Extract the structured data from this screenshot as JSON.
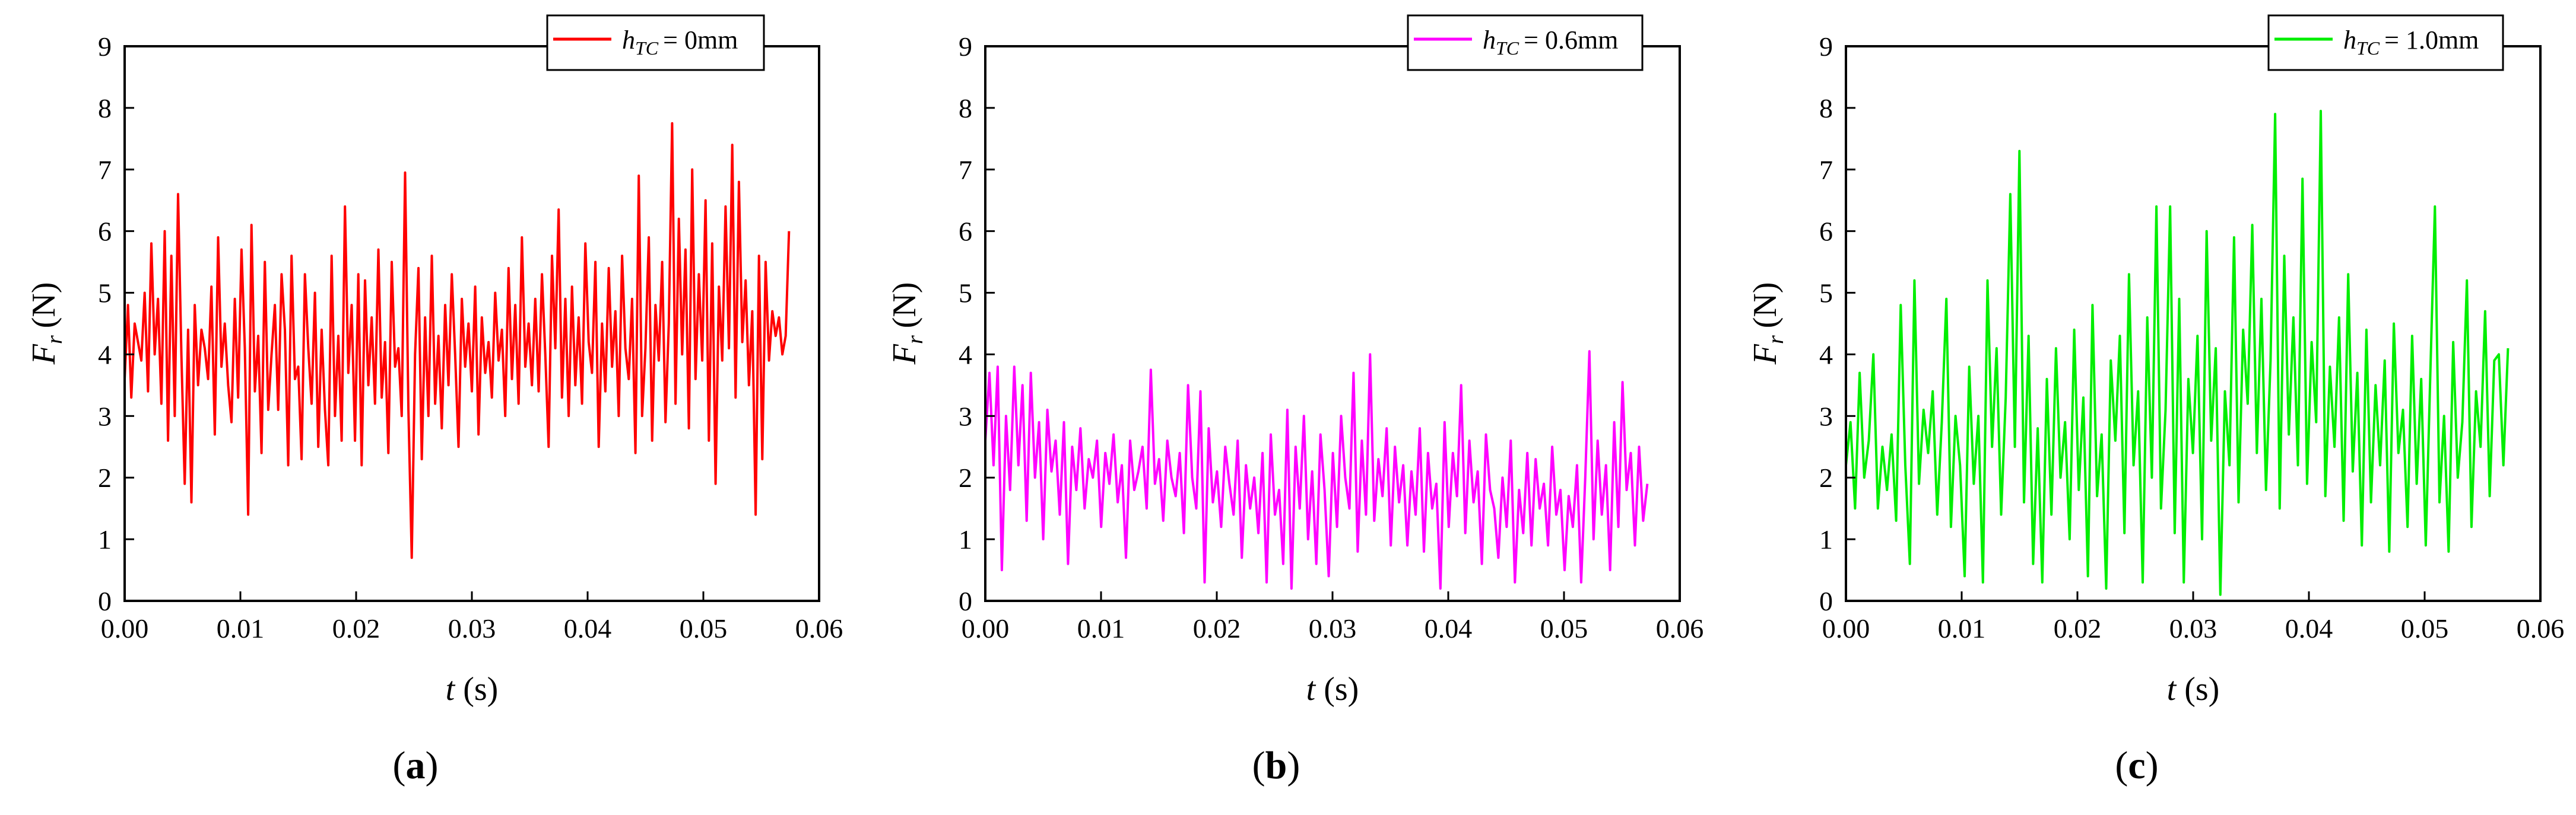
{
  "figure": {
    "panels": [
      {
        "id": "a",
        "label": "a",
        "legend_label": "= 0mm",
        "legend_var": "h",
        "legend_sub": "TC",
        "color": "#ff0000"
      },
      {
        "id": "b",
        "label": "b",
        "legend_label": "= 0.6mm",
        "legend_var": "h",
        "legend_sub": "TC",
        "color": "#ff00ff"
      },
      {
        "id": "c",
        "label": "c",
        "legend_label": "= 1.0mm",
        "legend_var": "h",
        "legend_sub": "TC",
        "color": "#00ee00"
      }
    ]
  },
  "chart_data": [
    {
      "type": "line",
      "panel": "a",
      "title": "",
      "xlabel_var": "t",
      "xlabel_unit": "(s)",
      "ylabel_var": "F",
      "ylabel_sub": "r",
      "ylabel_unit": "(N)",
      "xlim": [
        0,
        0.06
      ],
      "ylim": [
        0,
        9
      ],
      "xticks": [
        "0.00",
        "0.01",
        "0.02",
        "0.03",
        "0.04",
        "0.05",
        "0.06"
      ],
      "yticks": [
        "0",
        "1",
        "2",
        "3",
        "4",
        "5",
        "6",
        "7",
        "8",
        "9"
      ],
      "legend_position": "top-right",
      "series": [
        {
          "name": "hTC = 0mm",
          "color": "#ff0000",
          "t_end": 0.0574,
          "values": [
            3.6,
            4.8,
            3.3,
            4.5,
            4.2,
            3.9,
            5.0,
            3.4,
            5.8,
            4.0,
            4.9,
            3.2,
            6.0,
            2.6,
            5.6,
            3.0,
            6.6,
            4.0,
            1.9,
            4.4,
            1.6,
            4.8,
            3.5,
            4.4,
            4.1,
            3.6,
            5.1,
            2.7,
            5.9,
            3.8,
            4.5,
            3.5,
            2.9,
            4.9,
            3.3,
            5.7,
            4.1,
            1.4,
            6.1,
            3.4,
            4.3,
            2.4,
            5.5,
            3.1,
            4.0,
            4.8,
            3.1,
            5.3,
            4.4,
            2.2,
            5.6,
            3.6,
            3.8,
            2.3,
            5.3,
            4.1,
            3.2,
            5.0,
            2.5,
            4.4,
            3.1,
            2.2,
            5.6,
            3.0,
            4.3,
            2.6,
            6.4,
            3.7,
            4.8,
            2.6,
            5.3,
            2.2,
            5.2,
            3.5,
            4.6,
            3.2,
            5.7,
            3.3,
            4.2,
            2.4,
            5.5,
            3.8,
            4.1,
            3.0,
            6.95,
            3.1,
            0.7,
            4.0,
            5.4,
            2.3,
            4.6,
            3.0,
            5.6,
            3.2,
            4.3,
            2.8,
            4.8,
            3.5,
            5.3,
            4.0,
            2.5,
            4.9,
            3.8,
            4.5,
            3.4,
            5.1,
            2.7,
            4.6,
            3.7,
            4.2,
            3.3,
            5.0,
            3.9,
            4.4,
            3.0,
            5.4,
            3.6,
            4.8,
            3.2,
            5.9,
            3.8,
            4.5,
            3.5,
            4.9,
            3.4,
            5.3,
            4.0,
            2.5,
            5.6,
            4.1,
            6.35,
            3.3,
            4.9,
            3.0,
            5.1,
            3.5,
            4.6,
            3.2,
            5.8,
            4.2,
            3.7,
            5.5,
            2.5,
            4.5,
            3.4,
            5.4,
            3.8,
            4.7,
            3.0,
            5.6,
            4.1,
            3.6,
            4.9,
            2.4,
            6.9,
            3.0,
            4.1,
            5.9,
            2.6,
            4.8,
            3.9,
            5.5,
            2.9,
            4.5,
            7.75,
            3.2,
            6.2,
            4.0,
            5.7,
            2.8,
            7.0,
            3.6,
            5.3,
            3.9,
            6.5,
            2.6,
            5.8,
            1.9,
            5.1,
            3.9,
            6.4,
            4.1,
            7.4,
            3.3,
            6.8,
            4.2,
            5.2,
            3.5,
            4.7,
            1.4,
            5.6,
            2.3,
            5.5,
            3.9,
            4.7,
            4.3,
            4.6,
            4.0,
            4.3,
            6.0
          ]
        }
      ]
    },
    {
      "type": "line",
      "panel": "b",
      "title": "",
      "xlabel_var": "t",
      "xlabel_unit": "(s)",
      "ylabel_var": "F",
      "ylabel_sub": "r",
      "ylabel_unit": "(N)",
      "xlim": [
        0,
        0.06
      ],
      "ylim": [
        0,
        9
      ],
      "xticks": [
        "0.00",
        "0.01",
        "0.02",
        "0.03",
        "0.04",
        "0.05",
        "0.06"
      ],
      "yticks": [
        "0",
        "1",
        "2",
        "3",
        "4",
        "5",
        "6",
        "7",
        "8",
        "9"
      ],
      "legend_position": "top-right",
      "series": [
        {
          "name": "hTC = 0.6mm",
          "color": "#ff00ff",
          "t_end": 0.0572,
          "values": [
            2.6,
            3.7,
            2.2,
            3.8,
            0.5,
            3.0,
            1.8,
            3.8,
            2.2,
            3.5,
            1.3,
            3.7,
            2.0,
            2.9,
            1.0,
            3.1,
            2.1,
            2.6,
            1.4,
            2.9,
            0.6,
            2.5,
            1.8,
            2.8,
            1.5,
            2.3,
            2.0,
            2.6,
            1.2,
            2.4,
            1.9,
            2.7,
            1.6,
            2.2,
            0.7,
            2.6,
            1.8,
            2.1,
            2.5,
            1.5,
            3.75,
            1.9,
            2.3,
            1.3,
            2.6,
            2.0,
            1.7,
            2.4,
            1.1,
            3.5,
            2.0,
            1.5,
            3.4,
            0.3,
            2.8,
            1.6,
            2.1,
            1.2,
            2.5,
            1.9,
            1.4,
            2.6,
            0.7,
            2.2,
            1.5,
            2.0,
            1.1,
            2.4,
            0.3,
            2.7,
            1.4,
            1.8,
            0.6,
            3.1,
            0.2,
            2.5,
            1.5,
            3.0,
            1.0,
            2.1,
            0.6,
            2.7,
            1.8,
            0.4,
            2.4,
            1.2,
            3.0,
            2.0,
            1.5,
            3.7,
            0.8,
            2.6,
            1.4,
            4.0,
            1.3,
            2.3,
            1.7,
            2.8,
            0.9,
            2.5,
            1.6,
            2.2,
            0.9,
            2.1,
            1.4,
            2.8,
            0.8,
            2.4,
            1.5,
            1.9,
            0.2,
            2.9,
            1.2,
            2.4,
            1.7,
            3.5,
            1.1,
            2.6,
            1.6,
            2.1,
            0.6,
            2.7,
            1.8,
            1.5,
            0.7,
            2.0,
            1.2,
            2.6,
            0.3,
            1.8,
            1.1,
            2.4,
            0.9,
            2.3,
            1.5,
            1.9,
            0.9,
            2.5,
            1.4,
            1.8,
            0.5,
            1.7,
            1.2,
            2.2,
            0.3,
            2.0,
            4.05,
            1.0,
            2.6,
            1.4,
            2.2,
            0.5,
            2.9,
            1.2,
            3.55,
            1.8,
            2.4,
            0.9,
            2.5,
            1.3,
            1.9
          ]
        }
      ]
    },
    {
      "type": "line",
      "panel": "c",
      "title": "",
      "xlabel_var": "t",
      "xlabel_unit": "(s)",
      "ylabel_var": "F",
      "ylabel_sub": "r",
      "ylabel_unit": "(N)",
      "xlim": [
        0,
        0.06
      ],
      "ylim": [
        0,
        9
      ],
      "xticks": [
        "0.00",
        "0.01",
        "0.02",
        "0.03",
        "0.04",
        "0.05",
        "0.06"
      ],
      "yticks": [
        "0",
        "1",
        "2",
        "3",
        "4",
        "5",
        "6",
        "7",
        "8",
        "9"
      ],
      "legend_position": "top-right",
      "series": [
        {
          "name": "hTC = 1.0mm",
          "color": "#00ee00",
          "t_end": 0.0572,
          "values": [
            2.2,
            2.9,
            1.5,
            3.7,
            2.0,
            2.6,
            4.0,
            1.5,
            2.5,
            1.8,
            2.7,
            1.3,
            4.8,
            2.2,
            0.6,
            5.2,
            1.9,
            3.1,
            2.4,
            3.4,
            1.4,
            2.9,
            4.9,
            1.2,
            3.0,
            2.2,
            0.4,
            3.8,
            1.9,
            3.0,
            0.3,
            5.2,
            2.5,
            4.1,
            1.4,
            3.3,
            6.6,
            2.5,
            7.3,
            1.6,
            4.3,
            0.6,
            2.8,
            0.3,
            3.6,
            1.4,
            4.1,
            2.0,
            2.9,
            1.0,
            4.4,
            1.8,
            3.3,
            0.4,
            4.8,
            1.7,
            2.7,
            0.2,
            3.9,
            2.6,
            4.3,
            1.1,
            5.3,
            2.2,
            3.4,
            0.3,
            4.6,
            2.0,
            6.4,
            1.5,
            3.1,
            6.4,
            1.1,
            4.9,
            0.3,
            3.6,
            2.4,
            4.3,
            1.0,
            6.0,
            2.6,
            4.1,
            0.1,
            3.4,
            2.2,
            5.9,
            1.6,
            4.4,
            3.2,
            6.1,
            2.4,
            4.9,
            1.8,
            3.9,
            7.9,
            1.5,
            5.6,
            2.7,
            4.6,
            2.2,
            6.85,
            1.9,
            4.2,
            2.9,
            7.95,
            1.7,
            3.8,
            2.5,
            4.6,
            1.3,
            5.3,
            2.1,
            3.7,
            0.9,
            4.4,
            1.6,
            3.5,
            2.2,
            3.9,
            0.8,
            4.5,
            2.4,
            3.1,
            1.2,
            4.3,
            1.9,
            3.6,
            0.9,
            3.7,
            6.4,
            1.6,
            3.0,
            0.8,
            4.2,
            2.0,
            2.9,
            5.2,
            1.2,
            3.4,
            2.5,
            4.7,
            1.7,
            3.9,
            4.0,
            2.2,
            4.1
          ]
        }
      ]
    }
  ]
}
